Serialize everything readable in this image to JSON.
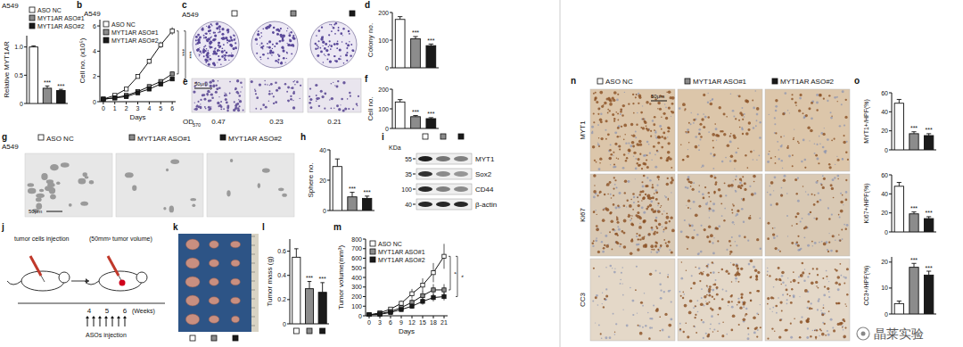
{
  "chart_data": [
    {
      "type": "bar",
      "title": "A549",
      "y_label": "Relative MYT1AR",
      "categories": [
        null
      ],
      "series": [
        {
          "name": "ASO NC",
          "color": "#ffffff",
          "values": [
            1.0
          ],
          "errors": [
            0.02
          ]
        },
        {
          "name": "MYT1AR ASO#1",
          "color": "#8c8c8c",
          "values": [
            0.27
          ],
          "errors": [
            0.04
          ]
        },
        {
          "name": "MYT1AR ASO#2",
          "color": "#1a1a1a",
          "values": [
            0.23
          ],
          "errors": [
            0.02
          ]
        }
      ],
      "ylim": [
        0,
        1.2
      ],
      "yticks": [
        0,
        0.5,
        {
          "value": 1,
          "label": "1.0"
        }
      ],
      "tick_labels": "y",
      "legend": "top-left",
      "annotations": [
        {
          "series": 1,
          "text": "***"
        },
        {
          "series": 2,
          "text": "***"
        }
      ]
    },
    {
      "type": "line",
      "title": "A549",
      "x_label": "Days",
      "y_label": "Cell no. (x10⁵)",
      "x": [
        0,
        1,
        2,
        3,
        4,
        5,
        6
      ],
      "xlim": [
        -0.3,
        6.3
      ],
      "xticks": [
        0,
        1,
        2,
        3,
        4,
        5,
        6
      ],
      "ylim": [
        0,
        6.5
      ],
      "yticks": [
        0,
        2,
        4,
        6
      ],
      "marker": "square",
      "legend": "top-left",
      "series": [
        {
          "name": "ASO NC",
          "color": "#ffffff",
          "values": [
            0.2,
            0.5,
            1.0,
            2.0,
            3.2,
            4.5,
            5.6
          ],
          "errors": [
            0.02,
            0.05,
            0.1,
            0.15,
            0.2,
            0.25,
            0.3
          ]
        },
        {
          "name": "MYT1AR ASO#1",
          "color": "#8c8c8c",
          "values": [
            0.2,
            0.3,
            0.5,
            0.8,
            1.2,
            1.6,
            2.2
          ],
          "errors": [
            0.02,
            0.03,
            0.05,
            0.08,
            0.1,
            0.12,
            0.15
          ]
        },
        {
          "name": "MYT1AR ASO#2",
          "color": "#1a1a1a",
          "values": [
            0.2,
            0.3,
            0.4,
            0.7,
            1.0,
            1.4,
            1.8
          ],
          "errors": [
            0.02,
            0.03,
            0.04,
            0.06,
            0.08,
            0.1,
            0.12
          ]
        }
      ],
      "annotations": [
        {
          "series": 1,
          "text": "***"
        },
        {
          "series": 2,
          "text": "***"
        }
      ]
    },
    {
      "type": "bar",
      "y_label": "Colony no.",
      "categories": [
        null,
        null,
        null
      ],
      "values": [
        175,
        105,
        80
      ],
      "errors": [
        10,
        8,
        6
      ],
      "colors": [
        "#ffffff",
        "#8c8c8c",
        "#1a1a1a"
      ],
      "ylim": [
        0,
        200
      ],
      "yticks": [
        0,
        100,
        200
      ],
      "tick_labels": "y",
      "annotations": [
        {
          "index": 1,
          "text": "***"
        },
        {
          "index": 2,
          "text": "***"
        }
      ]
    },
    {
      "type": "bar",
      "y_label": "Cell no.",
      "categories": [
        null,
        null,
        null
      ],
      "values": [
        135,
        60,
        50
      ],
      "errors": [
        12,
        6,
        5
      ],
      "colors": [
        "#ffffff",
        "#8c8c8c",
        "#1a1a1a"
      ],
      "ylim": [
        0,
        200
      ],
      "yticks": [
        0,
        100,
        200
      ],
      "tick_labels": "y",
      "annotations": [
        {
          "index": 1,
          "text": "***"
        },
        {
          "index": 2,
          "text": "***"
        }
      ]
    },
    {
      "type": "bar",
      "y_label": "Sphere no.",
      "categories": [
        null,
        null,
        null
      ],
      "values": [
        29,
        9,
        8
      ],
      "errors": [
        5,
        3,
        1.5
      ],
      "colors": [
        "#ffffff",
        "#8c8c8c",
        "#1a1a1a"
      ],
      "ylim": [
        0,
        40
      ],
      "yticks": [
        0,
        20,
        40
      ],
      "tick_labels": "y",
      "annotations": [
        {
          "index": 1,
          "text": "***"
        },
        {
          "index": 2,
          "text": "***"
        }
      ]
    },
    {
      "type": "bar",
      "y_label": "Tumor mass (g)",
      "categories": [
        null,
        null,
        null
      ],
      "values": [
        0.55,
        0.29,
        0.26
      ],
      "errors": [
        0.07,
        0.06,
        0.08
      ],
      "colors": [
        "#ffffff",
        "#8c8c8c",
        "#1a1a1a"
      ],
      "ylim": [
        0,
        0.7
      ],
      "yticks": [
        0,
        0.2,
        0.4,
        0.6
      ],
      "tick_labels": "y",
      "annotations": [
        {
          "index": 1,
          "text": "***"
        },
        {
          "index": 2,
          "text": "***"
        }
      ]
    },
    {
      "type": "line",
      "x_label": "Days",
      "y_label": "Tumor volume(mm³)",
      "x": [
        0,
        3,
        6,
        9,
        12,
        15,
        18,
        21
      ],
      "xlim": [
        -1,
        22
      ],
      "xticks": [
        0,
        3,
        6,
        9,
        12,
        15,
        18,
        21
      ],
      "ylim": [
        0,
        800
      ],
      "yticks": [
        0,
        100,
        200,
        300,
        400,
        500,
        600,
        700,
        800
      ],
      "marker": "square",
      "legend": "top-left",
      "series": [
        {
          "name": "ASO NC",
          "color": "#ffffff",
          "values": [
            10,
            30,
            70,
            130,
            230,
            320,
            450,
            620
          ],
          "errors": [
            5,
            10,
            20,
            30,
            50,
            70,
            100,
            130
          ]
        },
        {
          "name": "MYT1AR ASO#1",
          "color": "#8c8c8c",
          "values": [
            10,
            20,
            45,
            85,
            140,
            210,
            270,
            270
          ],
          "errors": [
            5,
            8,
            15,
            25,
            35,
            45,
            60,
            60
          ]
        },
        {
          "name": "MYT1AR ASO#2",
          "color": "#1a1a1a",
          "values": [
            10,
            15,
            35,
            65,
            100,
            150,
            190,
            200
          ],
          "errors": [
            5,
            6,
            12,
            20,
            25,
            35,
            40,
            40
          ]
        }
      ],
      "annotations": [
        {
          "series": 1,
          "text": "*"
        },
        {
          "series": 2,
          "text": "*"
        }
      ]
    },
    {
      "type": "bar",
      "y_label": "MYT1+/HPF(%)",
      "categories": [
        null,
        null,
        null
      ],
      "values": [
        49,
        17,
        15
      ],
      "errors": [
        4,
        2,
        2
      ],
      "colors": [
        "#ffffff",
        "#8c8c8c",
        "#1a1a1a"
      ],
      "ylim": [
        0,
        60
      ],
      "yticks": [
        0,
        20,
        40,
        60
      ],
      "tick_labels": "y",
      "annotations": [
        {
          "index": 1,
          "text": "***"
        },
        {
          "index": 2,
          "text": "***"
        }
      ]
    },
    {
      "type": "bar",
      "y_label": "Ki67+/HPF(%)",
      "categories": [
        null,
        null,
        null
      ],
      "values": [
        48,
        19,
        14
      ],
      "errors": [
        4,
        2,
        2
      ],
      "colors": [
        "#ffffff",
        "#8c8c8c",
        "#1a1a1a"
      ],
      "ylim": [
        0,
        60
      ],
      "yticks": [
        0,
        20,
        40,
        60
      ],
      "tick_labels": "y",
      "annotations": [
        {
          "index": 1,
          "text": "***"
        },
        {
          "index": 2,
          "text": "***"
        }
      ]
    },
    {
      "type": "bar",
      "y_label": "CC3+/HPF(%)",
      "categories": [
        null,
        null,
        null
      ],
      "values": [
        4,
        18,
        15
      ],
      "errors": [
        1,
        1.5,
        1.5
      ],
      "colors": [
        "#ffffff",
        "#8c8c8c",
        "#1a1a1a"
      ],
      "ylim": [
        0,
        22
      ],
      "yticks": [
        0,
        10,
        20
      ],
      "tick_labels": "y",
      "annotations": [
        {
          "index": 1,
          "text": "***"
        },
        {
          "index": 2,
          "text": "***"
        }
      ]
    }
  ],
  "panel_labels": [
    "b",
    "c",
    "d",
    "e",
    "f",
    "g",
    "h",
    "i",
    "j",
    "k",
    "l",
    "m",
    "n",
    "o"
  ],
  "images": {
    "c": {
      "title": "A549"
    },
    "e": {
      "scale_bar": "50μm",
      "od_label": "OD",
      "od_subscript": "570",
      "od_values": [
        0.47,
        0.23,
        0.21
      ]
    },
    "g": {
      "title": "A549",
      "columns": [
        "ASO NC",
        "MYT1AR ASO#1",
        "MYT1AR ASO#2"
      ],
      "scale_bar": "50μm"
    },
    "n": {
      "columns": [
        "ASO NC",
        "MYT1AR ASO#1",
        "MYT1AR ASO#2"
      ],
      "rows": [
        "MYT1",
        "Ki67",
        "CC3"
      ],
      "scale_bar": "50μm"
    }
  },
  "western_blot": {
    "unit": "KDa",
    "markers": [
      55,
      35,
      100,
      40
    ],
    "bands": [
      "MYT1",
      "Sox2",
      "CD44",
      "β-actin"
    ]
  },
  "schematic": {
    "cells_text": "tumor cells injection",
    "volume_text": "(50mm³ tumor volume)",
    "weeks": [
      4,
      5,
      6
    ],
    "weeks_label": "(Weeks)",
    "aso_text": "ASOs injection"
  },
  "watermark": "晶莱实验"
}
